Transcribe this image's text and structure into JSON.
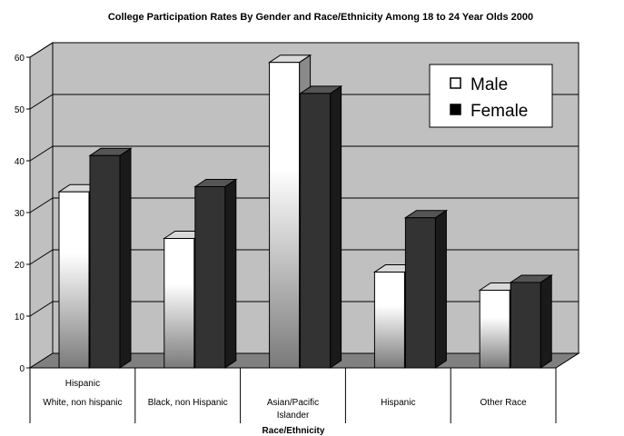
{
  "chart_data": {
    "type": "bar",
    "title": "College Participation Rates By Gender and Race/Ethnicity Among 18 to 24 Year Olds 2000",
    "xlabel": "Race/Ethnicity",
    "ylabel": "",
    "ylim": [
      0,
      60
    ],
    "yticks": [
      0,
      10,
      20,
      30,
      40,
      50,
      60
    ],
    "categories": [
      [
        "Hispanic",
        "White, non hispanic"
      ],
      [
        "Black, non Hispanic"
      ],
      [
        "Asian/Pacific",
        "Islander"
      ],
      [
        "Hispanic"
      ],
      [
        "Other Race"
      ]
    ],
    "series": [
      {
        "name": "Male",
        "values": [
          34,
          25,
          59,
          18.5,
          15
        ],
        "color": "#ffffff"
      },
      {
        "name": "Female",
        "values": [
          41,
          35,
          53,
          29,
          16.5
        ],
        "color": "#333333"
      }
    ],
    "grid": true,
    "legend_position": "top-right",
    "wall_color": "#c0c0c0",
    "floor_color": "#808080"
  }
}
